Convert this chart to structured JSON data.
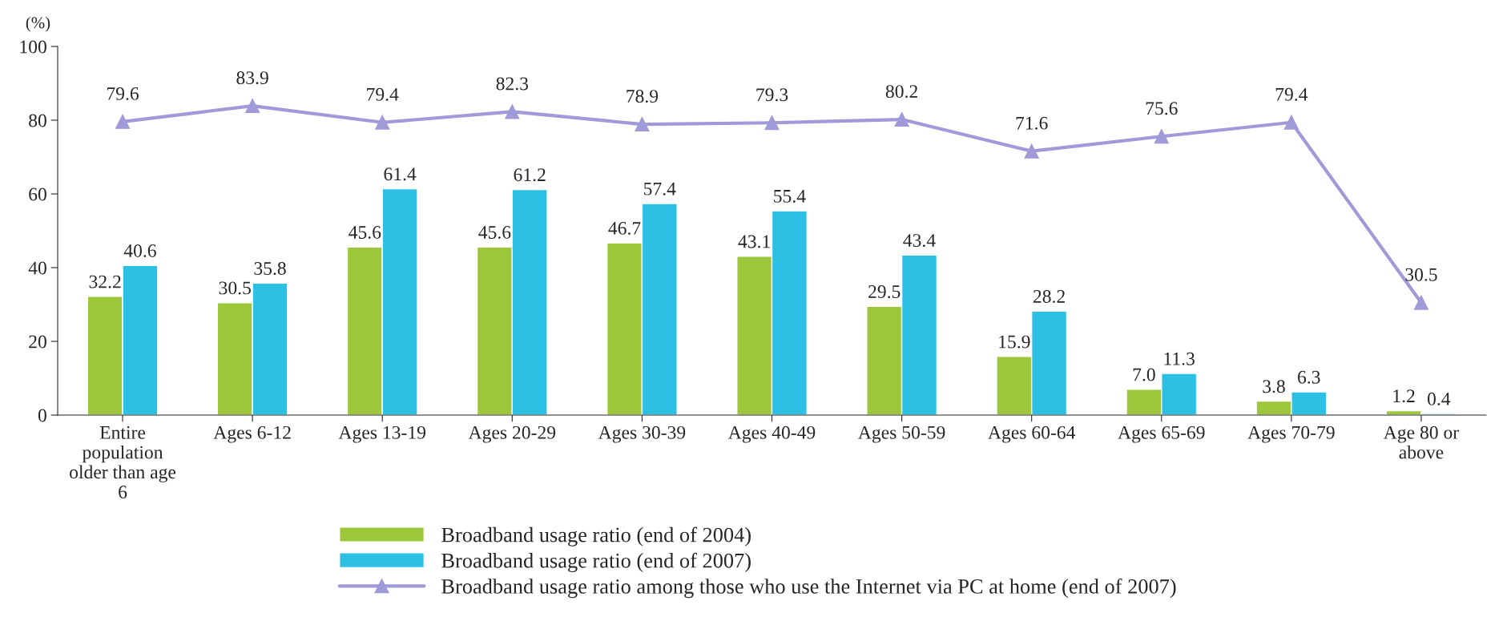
{
  "chart_data": {
    "type": "bar",
    "ylabel": "(%)",
    "categories": [
      "Entire\npopulation\nolder than age\n6",
      "Ages 6-12",
      "Ages 13-19",
      "Ages 20-29",
      "Ages 30-39",
      "Ages 40-49",
      "Ages 50-59",
      "Ages 60-64",
      "Ages 65-69",
      "Ages 70-79",
      "Age 80 or\nabove"
    ],
    "series": [
      {
        "name": "Broadband usage ratio (end of 2004)",
        "color": "#9dc73a",
        "values": [
          32.2,
          30.5,
          45.6,
          45.6,
          46.7,
          43.1,
          29.5,
          15.9,
          7.0,
          3.8,
          1.2
        ],
        "value_labels": [
          "32.2",
          "30.5",
          "45.6",
          "45.6",
          "46.7",
          "43.1",
          "29.5",
          "15.9",
          "7.0",
          "3.8",
          "1.2"
        ]
      },
      {
        "name": "Broadband usage ratio (end of 2007)",
        "color": "#2bc0e4",
        "values": [
          40.6,
          35.8,
          61.4,
          61.2,
          57.4,
          55.4,
          43.4,
          28.2,
          11.3,
          6.3,
          0.4
        ],
        "value_labels": [
          "40.6",
          "35.8",
          "61.4",
          "61.2",
          "57.4",
          "55.4",
          "43.4",
          "28.2",
          "11.3",
          "6.3",
          "0.4"
        ]
      },
      {
        "name": "Broadband usage ratio among those who use the Internet via PC at home (end of 2007)",
        "type": "line",
        "marker": "triangle",
        "color": "#a09ad8",
        "values": [
          79.6,
          83.9,
          79.4,
          82.3,
          78.9,
          79.3,
          80.2,
          71.6,
          75.6,
          79.4,
          30.5
        ],
        "value_labels": [
          "79.6",
          "83.9",
          "79.4",
          "82.3",
          "78.9",
          "79.3",
          "80.2",
          "71.6",
          "75.6",
          "79.4",
          "30.5"
        ]
      }
    ],
    "ylim": [
      0,
      100
    ],
    "yticks": [
      0,
      20,
      40,
      60,
      80,
      100
    ],
    "grid": false,
    "legend": "bottom"
  }
}
